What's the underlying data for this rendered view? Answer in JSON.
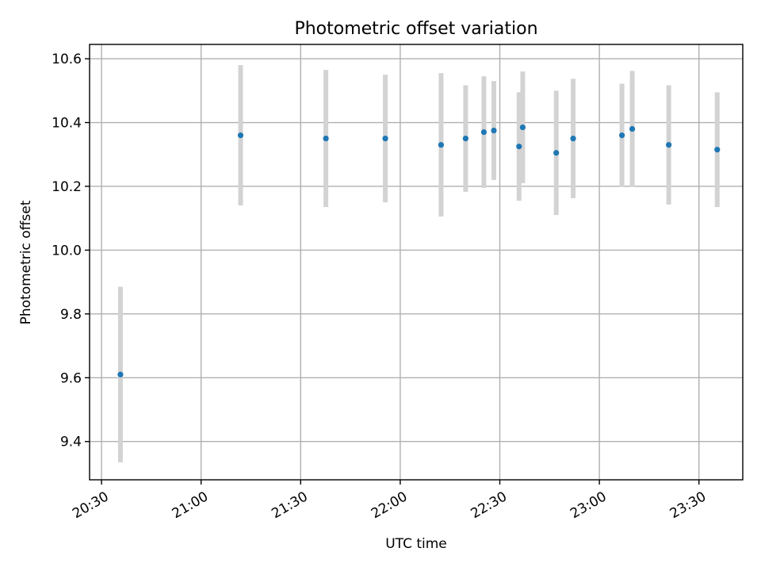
{
  "chart_data": {
    "type": "scatter",
    "title": "Photometric offset variation",
    "xlabel": "UTC time",
    "ylabel": "Photometric offset",
    "xlim": [
      "20:26:24",
      "23:43:12"
    ],
    "ylim": [
      9.28,
      10.645
    ],
    "grid": true,
    "xticks": [
      "20:30",
      "21:00",
      "21:30",
      "22:00",
      "22:30",
      "23:00",
      "23:30"
    ],
    "yticks": [
      "9.4",
      "9.6",
      "9.8",
      "10.0",
      "10.2",
      "10.4",
      "10.6"
    ],
    "colors": {
      "marker": "#1f77b4",
      "errorbar": "#d3d3d3",
      "grid": "#b0b0b0"
    },
    "points": [
      {
        "t": "20:35:42",
        "y": 9.61,
        "err": 0.275
      },
      {
        "t": "21:11:54",
        "y": 10.36,
        "err": 0.22
      },
      {
        "t": "21:37:36",
        "y": 10.35,
        "err": 0.215
      },
      {
        "t": "21:55:30",
        "y": 10.35,
        "err": 0.2
      },
      {
        "t": "22:12:18",
        "y": 10.33,
        "err": 0.225
      },
      {
        "t": "22:19:42",
        "y": 10.35,
        "err": 0.167
      },
      {
        "t": "22:25:12",
        "y": 10.37,
        "err": 0.175
      },
      {
        "t": "22:28:12",
        "y": 10.375,
        "err": 0.155
      },
      {
        "t": "22:35:48",
        "y": 10.325,
        "err": 0.17
      },
      {
        "t": "22:36:54",
        "y": 10.385,
        "err": 0.175
      },
      {
        "t": "22:47:00",
        "y": 10.305,
        "err": 0.195
      },
      {
        "t": "22:52:06",
        "y": 10.35,
        "err": 0.187
      },
      {
        "t": "23:06:48",
        "y": 10.36,
        "err": 0.162
      },
      {
        "t": "23:09:54",
        "y": 10.38,
        "err": 0.182
      },
      {
        "t": "23:20:54",
        "y": 10.33,
        "err": 0.187
      },
      {
        "t": "23:35:30",
        "y": 10.315,
        "err": 0.18
      }
    ]
  }
}
